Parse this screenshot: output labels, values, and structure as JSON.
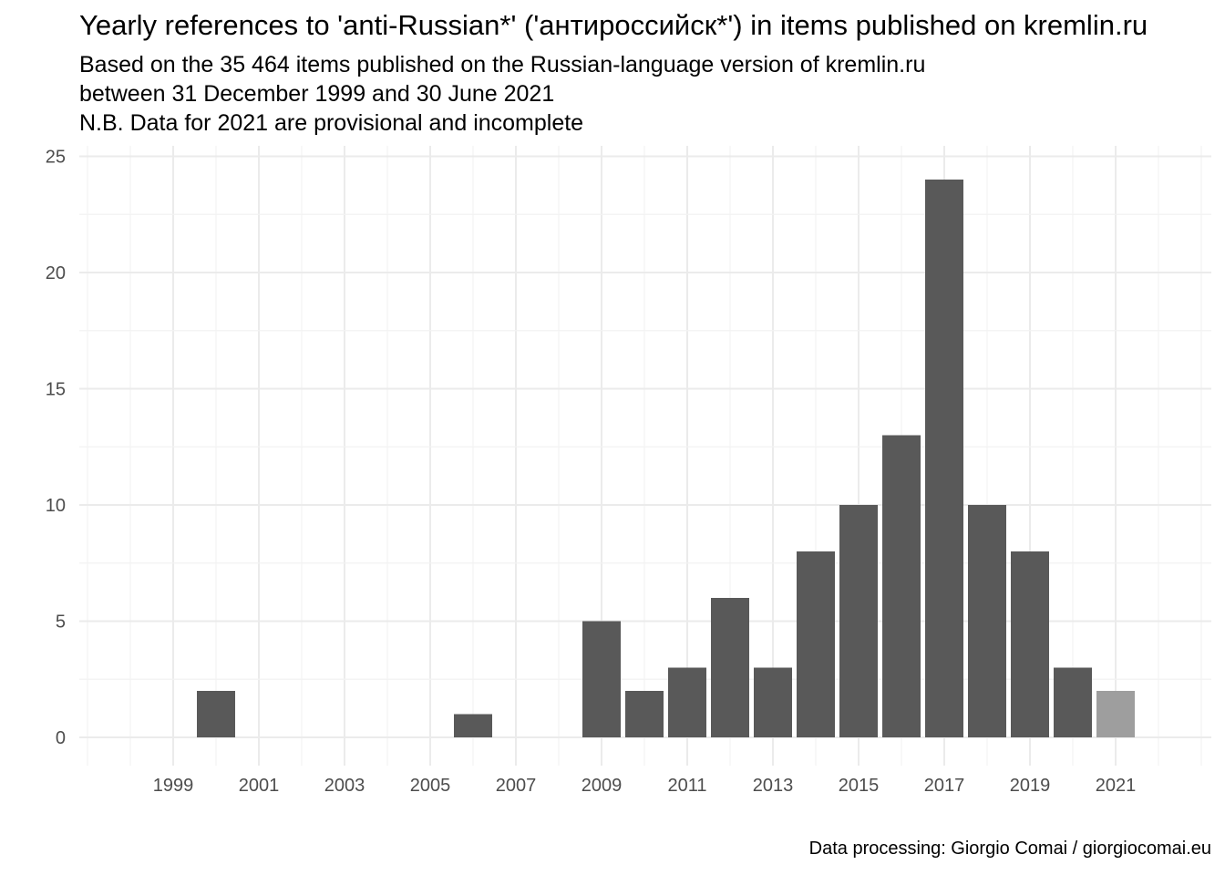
{
  "title": "Yearly references to 'anti-Russian*' ('антироссийск*') in items published on kremlin.ru",
  "subtitle_lines": [
    "Based on the  35 464 items published on the Russian-language version of kremlin.ru",
    "between 31 December 1999 and 30 June 2021",
    "N.B. Data for 2021 are provisional and incomplete"
  ],
  "caption": "Data processing: Giorgio Comai / giorgiocomai.eu",
  "colors": {
    "bar": "#595959",
    "bar_provisional": "#9e9e9e",
    "grid_major": "#ebebeb",
    "grid_minor": "#f2f2f2"
  },
  "chart_data": {
    "type": "bar",
    "categories": [
      2000,
      2006,
      2009,
      2010,
      2011,
      2012,
      2013,
      2014,
      2015,
      2016,
      2017,
      2018,
      2019,
      2020,
      2021
    ],
    "values": [
      2,
      1,
      5,
      2,
      3,
      6,
      3,
      8,
      10,
      13,
      24,
      10,
      8,
      3,
      2
    ],
    "provisional": [
      2021
    ],
    "xlabel": "",
    "ylabel": "",
    "xlim": [
      1997,
      2023
    ],
    "ylim": [
      0,
      25
    ],
    "x_ticks": [
      1999,
      2001,
      2003,
      2005,
      2007,
      2009,
      2011,
      2013,
      2015,
      2017,
      2019,
      2021
    ],
    "y_ticks": [
      0,
      5,
      10,
      15,
      20,
      25
    ],
    "grid": true,
    "legend": "none"
  }
}
